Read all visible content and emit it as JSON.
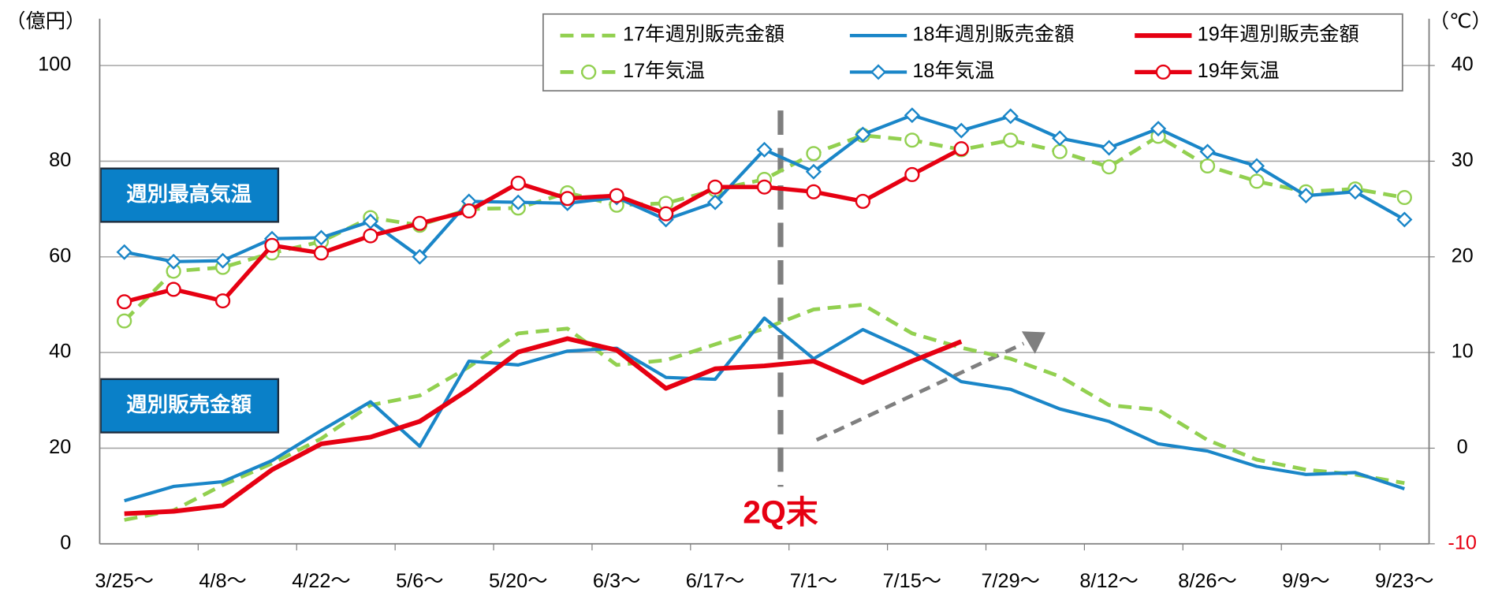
{
  "chart_data": {
    "type": "line",
    "ylabel": "（億円）",
    "y2label": "（℃）",
    "categories": [
      "3/25〜",
      null,
      "4/8〜",
      null,
      "4/22〜",
      null,
      "5/6〜",
      null,
      "5/20〜",
      null,
      "6/3〜",
      null,
      "6/17〜",
      null,
      "7/1〜",
      null,
      "7/15〜",
      null,
      "7/29〜",
      null,
      "8/12〜",
      null,
      "8/26〜",
      null,
      "9/9〜",
      null,
      "9/23〜"
    ],
    "ylim": [
      0,
      100
    ],
    "yticks": [
      0,
      20,
      40,
      60,
      80,
      100
    ],
    "y2lim": [
      -10,
      40
    ],
    "y2ticks": [
      -10,
      0,
      10,
      20,
      30,
      40
    ],
    "y2_negative_tick_color": "#e60012",
    "grid": true,
    "legend": "top",
    "series": [
      {
        "name": "17年週別販売金額",
        "color": "#92d050",
        "dashed": true,
        "marker": null,
        "width": 4,
        "values": [
          5,
          7,
          12.3,
          16.8,
          22,
          29,
          31,
          37,
          44,
          45,
          37.4,
          38.4,
          41.7,
          45,
          49,
          50,
          44,
          41,
          38.7,
          35,
          29,
          28,
          21.7,
          17.6,
          15.5,
          14.5,
          12.7
        ]
      },
      {
        "name": "18年週別販売金額",
        "color": "#1a86c8",
        "dashed": false,
        "marker": null,
        "width": 3.5,
        "values": [
          9,
          12,
          13,
          17.4,
          23.7,
          29.7,
          20.4,
          38.2,
          37.4,
          40.3,
          40.9,
          34.8,
          34.4,
          47.2,
          38.7,
          44.8,
          40.1,
          33.9,
          32.3,
          28.2,
          25.6,
          20.9,
          19.4,
          16.2,
          14.5,
          14.9,
          11.5
        ]
      },
      {
        "name": "19年週別販売金額",
        "color": "#e60012",
        "dashed": false,
        "marker": null,
        "width": 5,
        "values": [
          6.3,
          6.8,
          8,
          15.5,
          20.9,
          22.3,
          25.6,
          32.3,
          40.1,
          42.9,
          40.5,
          32.5,
          36.6,
          37.2,
          38.2,
          33.7,
          38.2,
          42.3,
          null,
          null,
          null,
          null,
          null,
          null,
          null,
          null,
          null
        ]
      },
      {
        "name": "17年気温",
        "color": "#92d050",
        "dashed": true,
        "marker": "circle",
        "width": 4,
        "axis": "y2",
        "values": [
          13.3,
          18.5,
          18.9,
          20.4,
          21.6,
          24.1,
          23.3,
          25,
          25.1,
          26.7,
          25.4,
          25.6,
          27,
          28.1,
          30.8,
          32.7,
          32.2,
          31.2,
          32.2,
          31,
          29.4,
          32.6,
          29.5,
          27.9,
          26.8,
          27.1,
          26.2
        ]
      },
      {
        "name": "18年気温",
        "color": "#1a86c8",
        "dashed": false,
        "marker": "diamond",
        "width": 3.5,
        "axis": "y2",
        "values": [
          20.5,
          19.5,
          19.6,
          21.9,
          22,
          23.7,
          20,
          25.8,
          25.7,
          25.6,
          26.2,
          23.9,
          25.7,
          31.2,
          28.9,
          32.8,
          34.8,
          33.2,
          34.7,
          32.4,
          31.4,
          33.4,
          31,
          29.5,
          26.4,
          26.8,
          23.9
        ]
      },
      {
        "name": "19年気温",
        "color": "#e60012",
        "dashed": false,
        "marker": "circle",
        "width": 4.5,
        "axis": "y2",
        "values": [
          15.3,
          16.6,
          15.4,
          21.2,
          20.4,
          22.2,
          23.5,
          24.8,
          27.7,
          26.1,
          26.4,
          24.5,
          27.3,
          27.3,
          26.8,
          25.8,
          28.6,
          31.3,
          null,
          null,
          null,
          null,
          null,
          null,
          null,
          null,
          null
        ]
      }
    ],
    "annotations": [
      "週別最高気温",
      "週別販売金額",
      "2Q末"
    ]
  }
}
